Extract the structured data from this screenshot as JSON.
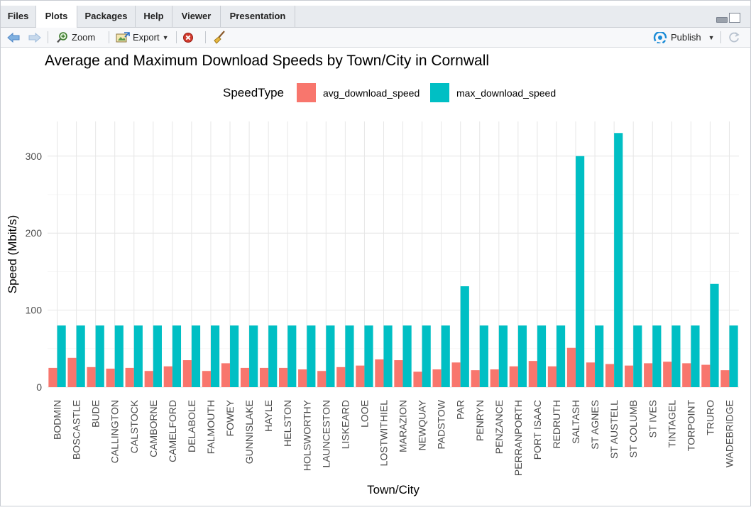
{
  "tabs": [
    {
      "label": "Files",
      "active": false
    },
    {
      "label": "Plots",
      "active": true
    },
    {
      "label": "Packages",
      "active": false
    },
    {
      "label": "Help",
      "active": false
    },
    {
      "label": "Viewer",
      "active": false
    },
    {
      "label": "Presentation",
      "active": false
    }
  ],
  "toolbar": {
    "zoom_label": "Zoom",
    "export_label": "Export",
    "publish_label": "Publish",
    "icons": [
      "back-arrow-icon",
      "forward-arrow-icon",
      "zoom-icon",
      "export-icon",
      "remove-plot-icon",
      "clear-all-broom-icon",
      "publish-icon",
      "refresh-icon"
    ]
  },
  "colors": {
    "avg": "#F8766D",
    "max": "#00BFC4",
    "publish_blue": "#1a8bd6"
  },
  "chart_data": {
    "type": "bar",
    "title": "Average and Maximum Download Speeds by Town/City in Cornwall",
    "xlabel": "Town/City",
    "ylabel": "Speed (Mbit/s)",
    "legend_title": "SpeedType",
    "legend_position": "top",
    "grid": true,
    "ylim": [
      0,
      345
    ],
    "yticks": [
      0,
      100,
      200,
      300
    ],
    "categories": [
      "BODMIN",
      "BOSCASTLE",
      "BUDE",
      "CALLINGTON",
      "CALSTOCK",
      "CAMBORNE",
      "CAMELFORD",
      "DELABOLE",
      "FALMOUTH",
      "FOWEY",
      "GUNNISLAKE",
      "HAYLE",
      "HELSTON",
      "HOLSWORTHY",
      "LAUNCESTON",
      "LISKEARD",
      "LOOE",
      "LOSTWITHIEL",
      "MARAZION",
      "NEWQUAY",
      "PADSTOW",
      "PAR",
      "PENRYN",
      "PENZANCE",
      "PERRANPORTH",
      "PORT ISAAC",
      "REDRUTH",
      "SALTASH",
      "ST AGNES",
      "ST AUSTELL",
      "ST COLUMB",
      "ST IVES",
      "TINTAGEL",
      "TORPOINT",
      "TRURO",
      "WADEBRIDGE"
    ],
    "series": [
      {
        "name": "avg_download_speed",
        "values": [
          25,
          38,
          26,
          24,
          25,
          21,
          27,
          35,
          21,
          31,
          25,
          25,
          25,
          23,
          21,
          26,
          28,
          36,
          35,
          20,
          23,
          32,
          22,
          23,
          27,
          34,
          27,
          51,
          32,
          30,
          28,
          31,
          33,
          31,
          29,
          22
        ]
      },
      {
        "name": "max_download_speed",
        "values": [
          80,
          80,
          80,
          80,
          80,
          80,
          80,
          80,
          80,
          80,
          80,
          80,
          80,
          80,
          80,
          80,
          80,
          80,
          80,
          80,
          80,
          131,
          80,
          80,
          80,
          80,
          80,
          300,
          80,
          330,
          80,
          80,
          80,
          80,
          134,
          80
        ]
      }
    ]
  }
}
